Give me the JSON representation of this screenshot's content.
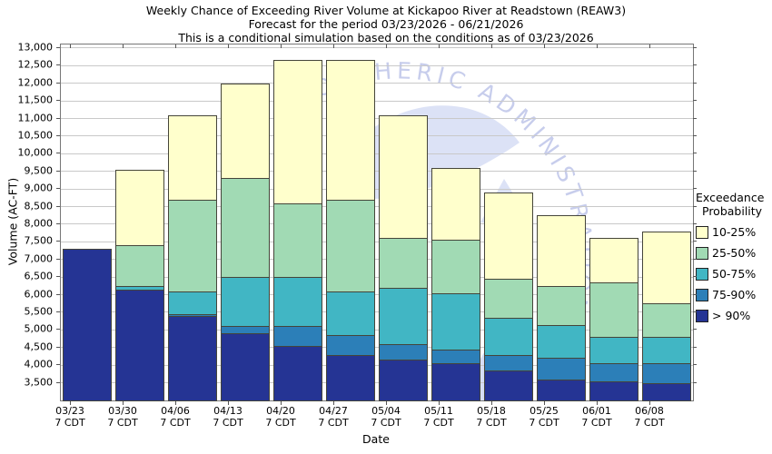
{
  "title": {
    "line1": "Weekly Chance of Exceeding River Volume at Kickapoo River at Readstown (REAW3)",
    "line2": "Forecast for the period 03/23/2026 - 06/21/2026",
    "line3": "This is a conditional simulation based on the conditions as of 03/23/2026"
  },
  "axes": {
    "y_title": "Volume (AC-FT)",
    "x_title": "Date"
  },
  "legend": {
    "title_line1": "Exceedance",
    "title_line2": "Probability",
    "items": [
      {
        "label": "10-25%",
        "color": "#ffffcc"
      },
      {
        "label": "25-50%",
        "color": "#a1dab4"
      },
      {
        "label": "50-75%",
        "color": "#41b6c4"
      },
      {
        "label": "75-90%",
        "color": "#2c7fb8"
      },
      {
        "label": "> 90%",
        "color": "#253494"
      }
    ]
  },
  "watermark": {
    "text": "MOSPHERIC ADMINISTRATION"
  },
  "chart_data": {
    "type": "bar",
    "stacked": true,
    "title": "Weekly Chance of Exceeding River Volume at Kickapoo River at Readstown (REAW3)",
    "xlabel": "Date",
    "ylabel": "Volume (AC-FT)",
    "grid": true,
    "legend_position": "right",
    "baseline": 3000,
    "ylim": [
      3000,
      13100
    ],
    "yticks": {
      "min": 3500,
      "max": 13000,
      "step": 500
    },
    "categories": [
      {
        "date": "03/23",
        "time": "7 CDT"
      },
      {
        "date": "03/30",
        "time": "7 CDT"
      },
      {
        "date": "04/06",
        "time": "7 CDT"
      },
      {
        "date": "04/13",
        "time": "7 CDT"
      },
      {
        "date": "04/20",
        "time": "7 CDT"
      },
      {
        "date": "04/27",
        "time": "7 CDT"
      },
      {
        "date": "05/04",
        "time": "7 CDT"
      },
      {
        "date": "05/11",
        "time": "7 CDT"
      },
      {
        "date": "05/18",
        "time": "7 CDT"
      },
      {
        "date": "05/25",
        "time": "7 CDT"
      },
      {
        "date": "06/01",
        "time": "7 CDT"
      },
      {
        "date": "06/08",
        "time": "7 CDT"
      }
    ],
    "series_note": "cumulative_top = stacked top of each exceedance band in AC-FT, stacking bottom-to-top from baseline",
    "series": [
      {
        "name": "> 90%",
        "color": "#253494",
        "cumulative_top": [
          7300,
          6150,
          5400,
          4900,
          4550,
          4300,
          4150,
          4050,
          3850,
          3600,
          3550,
          3500
        ]
      },
      {
        "name": "75-90%",
        "color": "#2c7fb8",
        "cumulative_top": [
          7300,
          6150,
          5450,
          5100,
          5100,
          4850,
          4600,
          4450,
          4300,
          4200,
          4050,
          4050
        ]
      },
      {
        "name": "50-75%",
        "color": "#41b6c4",
        "cumulative_top": [
          7300,
          6250,
          6100,
          6500,
          6500,
          6100,
          6200,
          6050,
          5350,
          5150,
          4800,
          4800
        ]
      },
      {
        "name": "25-50%",
        "color": "#a1dab4",
        "cumulative_top": [
          7300,
          7400,
          8700,
          9300,
          8600,
          8700,
          7600,
          7550,
          6450,
          6250,
          6350,
          5750
        ]
      },
      {
        "name": "10-25%",
        "color": "#ffffcc",
        "cumulative_top": [
          7300,
          9550,
          11100,
          12000,
          12650,
          12650,
          11100,
          9600,
          8900,
          8250,
          7600,
          7800
        ]
      }
    ]
  }
}
